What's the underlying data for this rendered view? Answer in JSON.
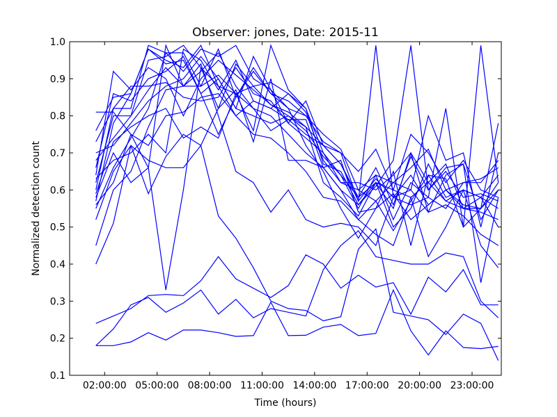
{
  "chart_data": {
    "type": "line",
    "title": "Observer: jones, Date: 2015-11",
    "xlabel": "Time (hours)",
    "ylabel": "Normalized detection count",
    "x_unit": "hour of day",
    "xlim": [
      0.0,
      24.67
    ],
    "ylim": [
      0.1,
      1.0
    ],
    "x_ticks": [
      {
        "value": 2,
        "label": "02:00:00"
      },
      {
        "value": 5,
        "label": "05:00:00"
      },
      {
        "value": 8,
        "label": "08:00:00"
      },
      {
        "value": 11,
        "label": "11:00:00"
      },
      {
        "value": 14,
        "label": "14:00:00"
      },
      {
        "value": 17,
        "label": "17:00:00"
      },
      {
        "value": 20,
        "label": "20:00:00"
      },
      {
        "value": 23,
        "label": "23:00:00"
      }
    ],
    "y_ticks": [
      {
        "value": 0.1,
        "label": "0.1"
      },
      {
        "value": 0.2,
        "label": "0.2"
      },
      {
        "value": 0.3,
        "label": "0.3"
      },
      {
        "value": 0.4,
        "label": "0.4"
      },
      {
        "value": 0.5,
        "label": "0.5"
      },
      {
        "value": 0.6,
        "label": "0.6"
      },
      {
        "value": 0.7,
        "label": "0.7"
      },
      {
        "value": 0.8,
        "label": "0.8"
      },
      {
        "value": 0.9,
        "label": "0.9"
      },
      {
        "value": 1.0,
        "label": "1.0"
      }
    ],
    "grid": false,
    "legend": "none",
    "line_color": "#0000ff",
    "x": [
      1.5,
      2.5,
      3.5,
      4.5,
      5.5,
      6.5,
      7.5,
      8.5,
      9.5,
      10.5,
      11.5,
      12.5,
      13.5,
      14.5,
      15.5,
      16.5,
      17.5,
      18.5,
      19.5,
      20.5,
      21.5,
      22.5,
      23.5,
      24.5
    ],
    "series": [
      {
        "values": [
          0.18,
          0.18,
          0.19,
          0.215,
          0.195,
          0.222,
          0.222,
          0.215,
          0.205,
          0.207,
          0.297,
          0.207,
          0.208,
          0.23,
          0.237,
          0.207,
          0.213,
          0.33,
          0.22,
          0.155,
          0.22,
          0.175,
          0.172,
          0.178
        ]
      },
      {
        "values": [
          0.18,
          0.225,
          0.29,
          0.31,
          0.27,
          0.295,
          0.33,
          0.265,
          0.305,
          0.255,
          0.28,
          0.27,
          0.26,
          0.385,
          0.45,
          0.49,
          0.42,
          0.41,
          0.4,
          0.4,
          0.43,
          0.42,
          0.3,
          0.255
        ]
      },
      {
        "values": [
          0.24,
          0.26,
          0.28,
          0.315,
          0.318,
          0.315,
          0.355,
          0.42,
          0.36,
          0.335,
          0.31,
          0.342,
          0.425,
          0.4,
          0.335,
          0.37,
          0.338,
          0.35,
          0.265,
          0.365,
          0.325,
          0.385,
          0.29,
          0.29
        ]
      },
      {
        "values": [
          0.4,
          0.51,
          0.72,
          0.68,
          0.66,
          0.66,
          0.72,
          0.53,
          0.47,
          0.39,
          0.3,
          0.28,
          0.275,
          0.247,
          0.258,
          0.44,
          0.495,
          0.27,
          0.26,
          0.25,
          0.21,
          0.265,
          0.24,
          0.14
        ]
      },
      {
        "values": [
          0.45,
          0.6,
          0.65,
          0.77,
          0.87,
          0.88,
          0.94,
          0.8,
          0.65,
          0.62,
          0.54,
          0.6,
          0.52,
          0.5,
          0.51,
          0.5,
          0.45,
          0.58,
          0.6,
          0.54,
          0.56,
          0.53,
          0.48,
          0.45
        ]
      },
      {
        "values": [
          0.56,
          0.62,
          0.75,
          0.66,
          0.33,
          0.6,
          0.93,
          0.88,
          0.8,
          0.75,
          0.74,
          0.7,
          0.65,
          0.58,
          0.57,
          0.52,
          0.48,
          0.45,
          0.58,
          0.42,
          0.5,
          0.6,
          0.45,
          0.39
        ]
      },
      {
        "values": [
          0.57,
          0.78,
          0.86,
          0.98,
          0.95,
          0.93,
          0.99,
          0.88,
          0.86,
          0.82,
          0.76,
          0.79,
          0.79,
          0.66,
          0.6,
          0.56,
          0.62,
          0.55,
          0.7,
          0.62,
          0.67,
          0.55,
          0.58,
          0.64
        ]
      },
      {
        "values": [
          0.6,
          0.82,
          0.82,
          0.99,
          0.97,
          0.97,
          0.88,
          0.98,
          0.85,
          0.92,
          0.86,
          0.84,
          0.8,
          0.73,
          0.7,
          0.65,
          0.71,
          0.6,
          0.75,
          0.7,
          0.62,
          0.68,
          0.6,
          0.58
        ]
      },
      {
        "values": [
          0.62,
          0.8,
          0.8,
          0.95,
          0.96,
          0.99,
          0.93,
          0.82,
          0.94,
          0.88,
          0.89,
          0.86,
          0.82,
          0.7,
          0.64,
          0.55,
          0.64,
          0.52,
          0.62,
          0.58,
          0.55,
          0.62,
          0.62,
          0.68
        ]
      },
      {
        "values": [
          0.64,
          0.92,
          0.87,
          0.93,
          0.9,
          0.8,
          0.9,
          0.95,
          0.91,
          0.87,
          0.83,
          0.81,
          0.77,
          0.62,
          0.58,
          0.53,
          0.62,
          0.5,
          0.55,
          0.67,
          0.58,
          0.6,
          0.58,
          0.5
        ]
      },
      {
        "values": [
          0.66,
          0.86,
          0.84,
          0.9,
          0.92,
          0.96,
          0.86,
          0.75,
          0.85,
          0.93,
          0.86,
          0.82,
          0.72,
          0.65,
          0.55,
          0.47,
          0.55,
          0.59,
          0.52,
          0.56,
          0.6,
          0.55,
          0.55,
          0.62
        ]
      },
      {
        "values": [
          0.68,
          0.74,
          0.8,
          0.87,
          0.93,
          0.88,
          0.92,
          0.97,
          0.88,
          0.82,
          0.8,
          0.75,
          0.7,
          0.66,
          0.6,
          0.52,
          0.57,
          0.49,
          0.57,
          0.64,
          0.57,
          0.6,
          0.58,
          0.55
        ]
      },
      {
        "values": [
          0.7,
          0.72,
          0.78,
          0.84,
          0.88,
          0.9,
          0.96,
          0.9,
          0.82,
          0.8,
          0.78,
          0.8,
          0.76,
          0.69,
          0.64,
          0.58,
          0.66,
          0.56,
          0.69,
          0.6,
          0.65,
          0.58,
          0.59,
          0.57
        ]
      },
      {
        "values": [
          0.73,
          0.82,
          0.88,
          0.88,
          0.89,
          0.85,
          0.84,
          0.85,
          0.93,
          0.86,
          0.84,
          0.78,
          0.74,
          0.7,
          0.62,
          0.62,
          0.6,
          0.64,
          0.7,
          0.54,
          0.64,
          0.67,
          0.52,
          0.6
        ]
      },
      {
        "values": [
          0.76,
          0.85,
          0.86,
          0.98,
          0.94,
          0.95,
          0.86,
          0.9,
          0.82,
          0.96,
          0.87,
          0.82,
          0.8,
          0.75,
          0.71,
          0.6,
          0.64,
          0.62,
          0.66,
          0.71,
          0.6,
          0.56,
          0.55,
          0.6
        ]
      },
      {
        "values": [
          0.81,
          0.81,
          0.75,
          0.72,
          0.8,
          0.81,
          0.85,
          0.86,
          0.8,
          0.84,
          0.82,
          0.79,
          0.75,
          0.72,
          0.67,
          0.58,
          0.62,
          0.6,
          0.58,
          0.62,
          0.57,
          0.55,
          0.54,
          0.52
        ]
      },
      {
        "values": [
          0.55,
          0.66,
          0.74,
          0.82,
          0.97,
          0.92,
          0.98,
          0.96,
          0.99,
          0.9,
          0.87,
          0.78,
          0.84,
          0.72,
          0.67,
          0.57,
          0.99,
          0.58,
          0.56,
          0.58,
          0.82,
          0.5,
          0.99,
          0.62
        ]
      },
      {
        "values": [
          0.58,
          0.7,
          0.62,
          0.66,
          0.99,
          0.88,
          0.88,
          0.91,
          0.86,
          0.76,
          0.99,
          0.87,
          0.82,
          0.67,
          0.65,
          0.56,
          0.61,
          0.68,
          0.99,
          0.6,
          0.66,
          0.67,
          0.35,
          0.58
        ]
      },
      {
        "values": [
          0.63,
          0.68,
          0.7,
          0.75,
          0.7,
          0.98,
          0.95,
          0.87,
          0.95,
          0.84,
          0.82,
          0.86,
          0.81,
          0.68,
          0.62,
          0.6,
          0.57,
          0.62,
          0.6,
          0.8,
          0.68,
          0.7,
          0.5,
          0.7
        ]
      },
      {
        "values": [
          0.52,
          0.65,
          0.72,
          0.59,
          0.69,
          0.75,
          0.72,
          0.82,
          0.87,
          0.73,
          0.9,
          0.68,
          0.68,
          0.66,
          0.68,
          0.54,
          0.55,
          0.65,
          0.45,
          0.64,
          0.63,
          0.5,
          0.55,
          0.78
        ]
      },
      {
        "values": [
          0.59,
          0.73,
          0.77,
          0.8,
          0.82,
          0.74,
          0.77,
          0.74,
          0.86,
          0.88,
          0.83,
          0.8,
          0.77,
          0.72,
          0.7,
          0.57,
          0.63,
          0.58,
          0.64,
          0.56,
          0.6,
          0.62,
          0.63,
          0.66
        ]
      }
    ]
  }
}
